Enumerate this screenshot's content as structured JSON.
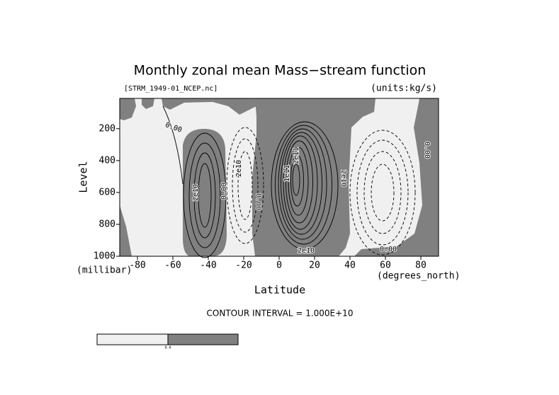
{
  "chart_data": {
    "type": "contour",
    "title": "Monthly zonal mean Mass−stream function",
    "subtitle_left": "[STRM_1949-01_NCEP.nc]",
    "subtitle_right": "(units:kg/s)",
    "y_label": "Level",
    "y_units": "(millibar)",
    "x_label": "Latitude",
    "x_units": "(degrees_north)",
    "contour_interval": "CONTOUR INTERVAL = 1.000E+10",
    "xlim": [
      -90,
      90
    ],
    "xticks": [
      -80,
      -60,
      -40,
      -20,
      0,
      20,
      40,
      60,
      80
    ],
    "ylim": [
      1000,
      10
    ],
    "yticks": [
      200,
      400,
      600,
      800,
      1000
    ],
    "contour_labels": [
      "0.00",
      "2e10",
      "0.00",
      "2e10",
      "0.00",
      "1e11",
      "2e11",
      "2e10",
      "0.00",
      "0.00",
      "2e10"
    ],
    "colorbar_label": "0.0",
    "negative_color": "#f0f0f0",
    "positive_color": "#808080"
  }
}
